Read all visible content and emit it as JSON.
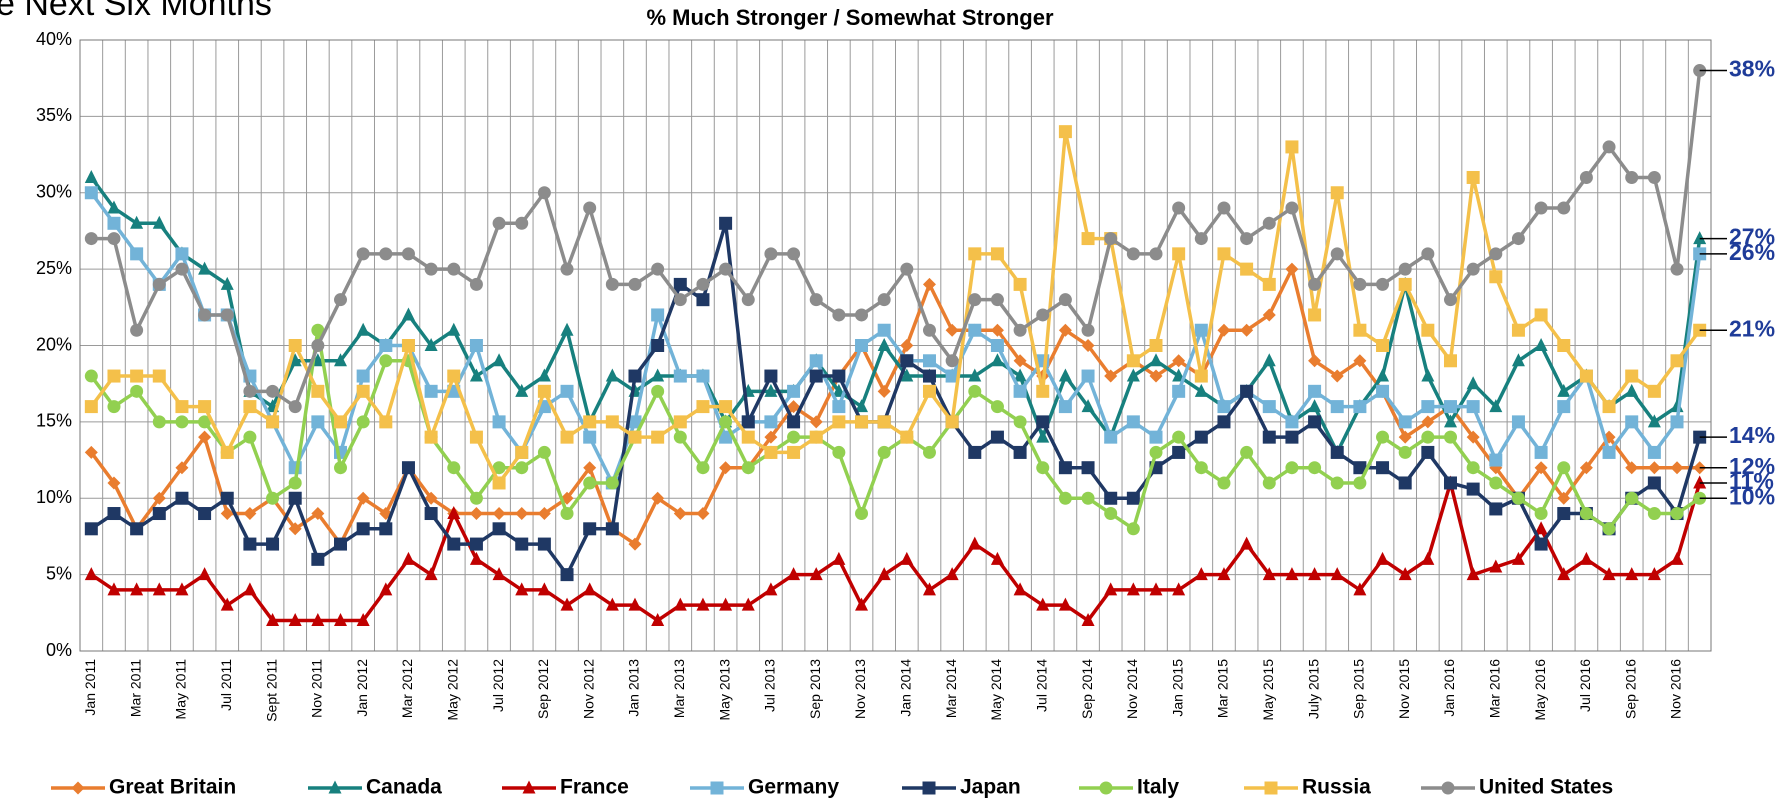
{
  "chart_data": {
    "type": "line",
    "header_fragment": "e Next Six Months",
    "title": "% Much Stronger / Somewhat Stronger",
    "categories": [
      "Jan 2011",
      null,
      "Mar 2011",
      null,
      "May 2011",
      null,
      "Jul 2011",
      null,
      "Sept 2011",
      null,
      "Nov 2011",
      null,
      "Jan 2012",
      null,
      "Mar 2012",
      null,
      "May 2012",
      null,
      "Jul 2012",
      null,
      "Sep 2012",
      null,
      "Nov 2012",
      null,
      "Jan 2013",
      null,
      "Mar 2013",
      null,
      "May 2013",
      null,
      "Jul 2013",
      null,
      "Sep 2013",
      null,
      "Nov 2013",
      null,
      "Jan 2014",
      null,
      "Mar 2014",
      null,
      "May 2014",
      null,
      "Jul 2014",
      null,
      "Sep 2014",
      null,
      "Nov 2014",
      null,
      "Jan 2015",
      null,
      "Mar 2015",
      null,
      "May 2015",
      null,
      "July 2015",
      null,
      "Sep 2015",
      null,
      "Nov 2015",
      null,
      "Jan 2016",
      null,
      "Mar 2016",
      null,
      "May 2016",
      null,
      "Jul 2016",
      null,
      "Sep 2016",
      null,
      "Nov 2016",
      null
    ],
    "ylim": [
      0,
      40
    ],
    "yticks": [
      {
        "value": 0,
        "label": "0%"
      },
      {
        "value": 5,
        "label": "5%"
      },
      {
        "value": 10,
        "label": "10%"
      },
      {
        "value": 15,
        "label": "15%"
      },
      {
        "value": 20,
        "label": "20%"
      },
      {
        "value": 25,
        "label": "25%"
      },
      {
        "value": 30,
        "label": "30%"
      },
      {
        "value": 35,
        "label": "35%"
      },
      {
        "value": 40,
        "label": "40%"
      }
    ],
    "grid": true,
    "legend": "bottom",
    "series": [
      {
        "name": "Great Britain",
        "color": "#e97d2f",
        "marker": "diamond",
        "end_label": "12%",
        "values": [
          13,
          11,
          8,
          10,
          12,
          14,
          9,
          9,
          10,
          8,
          9,
          7,
          10,
          9,
          12,
          10,
          9,
          9,
          9,
          9,
          9,
          10,
          12,
          8,
          7,
          10,
          9,
          9,
          12,
          12,
          14,
          16,
          15,
          18,
          20,
          17,
          20,
          24,
          21,
          21,
          21,
          19,
          18,
          21,
          20,
          18,
          19,
          18,
          19,
          18,
          21,
          21,
          22,
          25,
          19,
          18,
          19,
          17,
          14,
          15,
          16,
          14,
          12,
          10,
          12,
          10,
          12,
          14,
          12,
          12,
          12,
          12
        ]
      },
      {
        "name": "Canada",
        "color": "#17807e",
        "marker": "triangle",
        "end_label": "27%",
        "values": [
          31,
          29,
          28,
          28,
          26,
          25,
          24,
          17,
          16,
          19,
          19,
          19,
          21,
          20,
          22,
          20,
          21,
          18,
          19,
          17,
          18,
          21,
          15,
          18,
          17,
          18,
          18,
          18,
          15,
          17,
          17,
          17,
          19,
          17,
          16,
          20,
          18,
          18,
          18,
          18,
          19,
          18,
          14,
          18,
          16,
          14,
          18,
          19,
          18,
          17,
          16,
          17,
          19,
          15,
          16,
          13,
          16,
          18,
          24,
          18,
          15,
          17.5,
          16,
          19,
          20,
          17,
          18,
          16,
          17,
          15,
          16,
          27
        ]
      },
      {
        "name": "France",
        "color": "#c00000",
        "marker": "triangle",
        "end_label": "11%",
        "values": [
          5,
          4,
          4,
          4,
          4,
          5,
          3,
          4,
          2,
          2,
          2,
          2,
          2,
          4,
          6,
          5,
          9,
          6,
          5,
          4,
          4,
          3,
          4,
          3,
          3,
          2,
          3,
          3,
          3,
          3,
          4,
          5,
          5,
          6,
          3,
          5,
          6,
          4,
          5,
          7,
          6,
          4,
          3,
          3,
          2,
          4,
          4,
          4,
          4,
          5,
          5,
          7,
          5,
          5,
          5,
          5,
          4,
          6,
          5,
          6,
          11,
          5,
          5.5,
          6,
          8,
          5,
          6,
          5,
          5,
          5,
          6,
          11
        ]
      },
      {
        "name": "Germany",
        "color": "#72b3d8",
        "marker": "square",
        "end_label": "26%",
        "values": [
          30,
          28,
          26,
          24,
          26,
          22,
          22,
          18,
          15,
          12,
          15,
          13,
          18,
          20,
          20,
          17,
          17,
          20,
          15,
          13,
          16,
          17,
          14,
          11,
          15,
          22,
          18,
          18,
          14,
          15,
          15,
          17,
          19,
          16,
          20,
          21,
          19,
          19,
          18,
          21,
          20,
          17,
          19,
          16,
          18,
          14,
          15,
          14,
          17,
          21,
          16,
          17,
          16,
          15,
          17,
          16,
          16,
          17,
          15,
          16,
          16,
          16,
          12.5,
          15,
          13,
          16,
          18,
          13,
          15,
          13,
          15,
          26
        ]
      },
      {
        "name": "Japan",
        "color": "#1f3864",
        "marker": "square",
        "end_label": "14%",
        "values": [
          8,
          9,
          8,
          9,
          10,
          9,
          10,
          7,
          7,
          10,
          6,
          7,
          8,
          8,
          12,
          9,
          7,
          7,
          8,
          7,
          7,
          5,
          8,
          8,
          18,
          20,
          24,
          23,
          28,
          15,
          18,
          15,
          18,
          18,
          15,
          15,
          19,
          18,
          15,
          13,
          14,
          13,
          15,
          12,
          12,
          10,
          10,
          12,
          13,
          14,
          15,
          17,
          14,
          14,
          15,
          13,
          12,
          12,
          11,
          13,
          11,
          10.6,
          9.3,
          10,
          7,
          9,
          9,
          8,
          10,
          11,
          9,
          14
        ]
      },
      {
        "name": "Italy",
        "color": "#92d050",
        "marker": "circle",
        "end_label": "10%",
        "values": [
          18,
          16,
          17,
          15,
          15,
          15,
          13,
          14,
          10,
          11,
          21,
          12,
          15,
          19,
          19,
          14,
          12,
          10,
          12,
          12,
          13,
          9,
          11,
          11,
          14,
          17,
          14,
          12,
          15,
          12,
          13,
          14,
          14,
          13,
          9,
          13,
          14,
          13,
          15,
          17,
          16,
          15,
          12,
          10,
          10,
          9,
          8,
          13,
          14,
          12,
          11,
          13,
          11,
          12,
          12,
          11,
          11,
          14,
          13,
          14,
          14,
          12,
          11,
          10,
          9,
          12,
          9,
          8,
          10,
          9,
          9,
          10
        ]
      },
      {
        "name": "Russia",
        "color": "#f4c04a",
        "marker": "square",
        "end_label": "21%",
        "values": [
          16,
          18,
          18,
          18,
          16,
          16,
          13,
          16,
          15,
          20,
          17,
          15,
          17,
          15,
          20,
          14,
          18,
          14,
          11,
          13,
          17,
          14,
          15,
          15,
          14,
          14,
          15,
          16,
          16,
          14,
          13,
          13,
          14,
          15,
          15,
          15,
          14,
          17,
          15,
          26,
          26,
          24,
          17,
          34,
          27,
          27,
          19,
          20,
          26,
          18,
          26,
          25,
          24,
          33,
          22,
          30,
          21,
          20,
          24,
          21,
          19,
          31,
          24.5,
          21,
          22,
          20,
          18,
          16,
          18,
          17,
          19,
          21
        ]
      },
      {
        "name": "United States",
        "color": "#8c8c8c",
        "marker": "circle",
        "end_label": "38%",
        "values": [
          27,
          27,
          21,
          24,
          25,
          22,
          22,
          17,
          17,
          16,
          20,
          23,
          26,
          26,
          26,
          25,
          25,
          24,
          28,
          28,
          30,
          25,
          29,
          24,
          24,
          25,
          23,
          24,
          25,
          23,
          26,
          26,
          23,
          22,
          22,
          23,
          25,
          21,
          19,
          23,
          23,
          21,
          22,
          23,
          21,
          27,
          26,
          26,
          29,
          27,
          29,
          27,
          28,
          29,
          24,
          26,
          24,
          24,
          25,
          26,
          23,
          25,
          26,
          27,
          29,
          29,
          31,
          33,
          31,
          31,
          25,
          38
        ]
      }
    ]
  }
}
